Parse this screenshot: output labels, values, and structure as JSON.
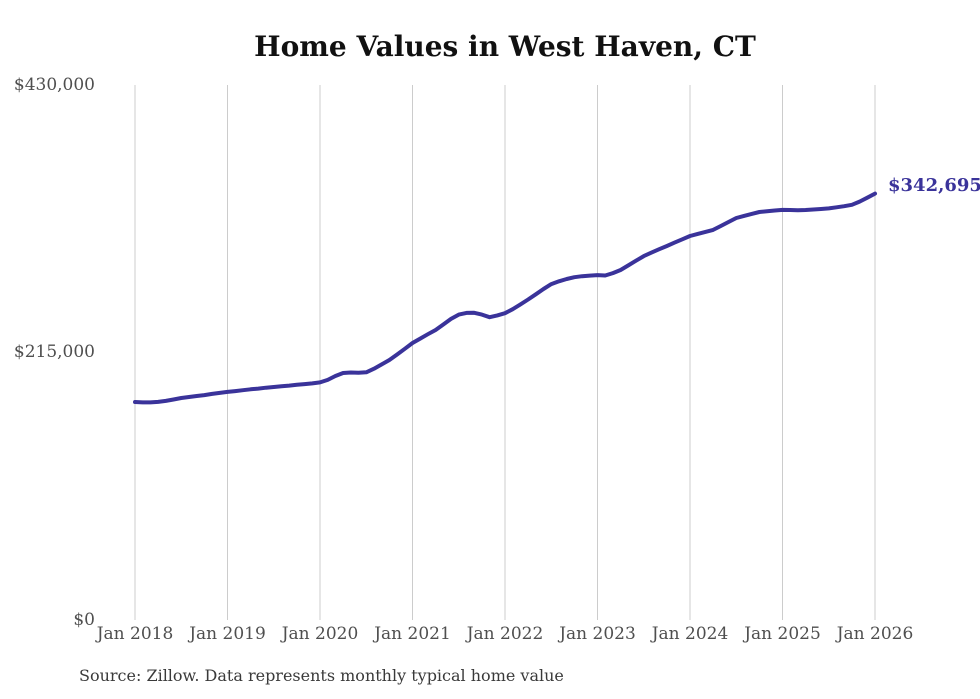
{
  "chart_data": {
    "type": "line",
    "title": "Home Values in West Haven, CT",
    "source": "Source: Zillow. Data represents monthly typical home value",
    "annotation": "$342,695",
    "latest_value": 342695,
    "unit": "USD",
    "frequency": "monthly",
    "x_start": "2018-01",
    "x_end": "2026-01",
    "ylim": [
      0,
      430000
    ],
    "grid": "vertical-only",
    "legend": "none",
    "line_color": "#3a339a",
    "gridline_color": "#cccccc",
    "tick_label_color": "#4f4f4f",
    "x_tick_labels": [
      "Jan 2018",
      "Jan 2019",
      "Jan 2020",
      "Jan 2021",
      "Jan 2022",
      "Jan 2023",
      "Jan 2024",
      "Jan 2025",
      "Jan 2026"
    ],
    "y_tick_labels": [
      "$0",
      "$215,000",
      "$430,000"
    ],
    "y_tick_values": [
      0,
      215000,
      430000
    ],
    "series": [
      {
        "name": "Typical home value",
        "values": [
          175200,
          174900,
          174900,
          175300,
          176100,
          177200,
          178400,
          179200,
          180000,
          180800,
          181700,
          182500,
          183300,
          184000,
          184700,
          185400,
          186000,
          186700,
          187300,
          187900,
          188400,
          189000,
          189600,
          190200,
          191000,
          193000,
          196100,
          198500,
          198900,
          198700,
          199100,
          202000,
          205400,
          209000,
          213400,
          218000,
          222600,
          226200,
          229700,
          233100,
          237500,
          242000,
          245500,
          246800,
          246900,
          245500,
          243400,
          244800,
          246600,
          249800,
          253700,
          257600,
          261800,
          266000,
          270000,
          272200,
          274100,
          275500,
          276300,
          276800,
          277200,
          276900,
          278800,
          281300,
          285000,
          288800,
          292500,
          295300,
          298000,
          300600,
          303300,
          306000,
          308600,
          310300,
          311900,
          313500,
          316700,
          319900,
          323100,
          324800,
          326400,
          327900,
          328500,
          329100,
          329600,
          329500,
          329400,
          329500,
          329900,
          330300,
          330800,
          331700,
          332600,
          333700,
          336300,
          339400,
          342695
        ]
      }
    ]
  }
}
